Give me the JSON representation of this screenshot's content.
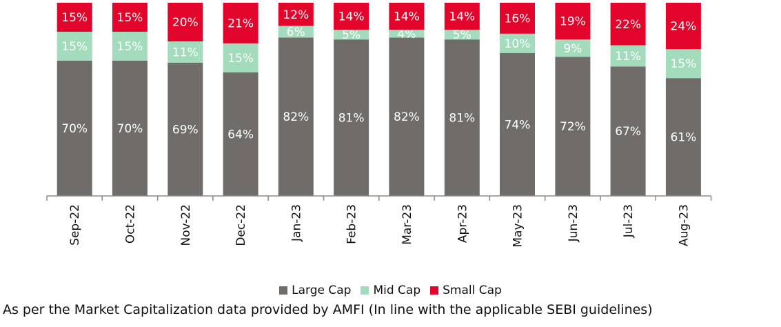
{
  "chart_data": {
    "type": "bar",
    "stacked": true,
    "categories": [
      "Sep-22",
      "Oct-22",
      "Nov-22",
      "Dec-22",
      "Jan-23",
      "Feb-23",
      "Mar-23",
      "Apr-23",
      "May-23",
      "Jun-23",
      "Jul-23",
      "Aug-23"
    ],
    "series": [
      {
        "name": "Large Cap",
        "color": "#706c69",
        "values": [
          70,
          70,
          69,
          64,
          82,
          81,
          82,
          81,
          74,
          72,
          67,
          61
        ]
      },
      {
        "name": "Mid Cap",
        "color": "#a3dbbd",
        "values": [
          15,
          15,
          11,
          15,
          6,
          5,
          4,
          5,
          10,
          9,
          11,
          15
        ]
      },
      {
        "name": "Small Cap",
        "color": "#e2042a",
        "values": [
          15,
          15,
          20,
          21,
          12,
          14,
          14,
          14,
          16,
          19,
          22,
          24
        ]
      }
    ],
    "value_suffix": "%",
    "ylim": [
      0,
      100
    ],
    "legend_position": "bottom",
    "grid": false
  },
  "footnote": "As per the Market Capitalization data provided by AMFI (In line with the applicable SEBI guidelines)"
}
